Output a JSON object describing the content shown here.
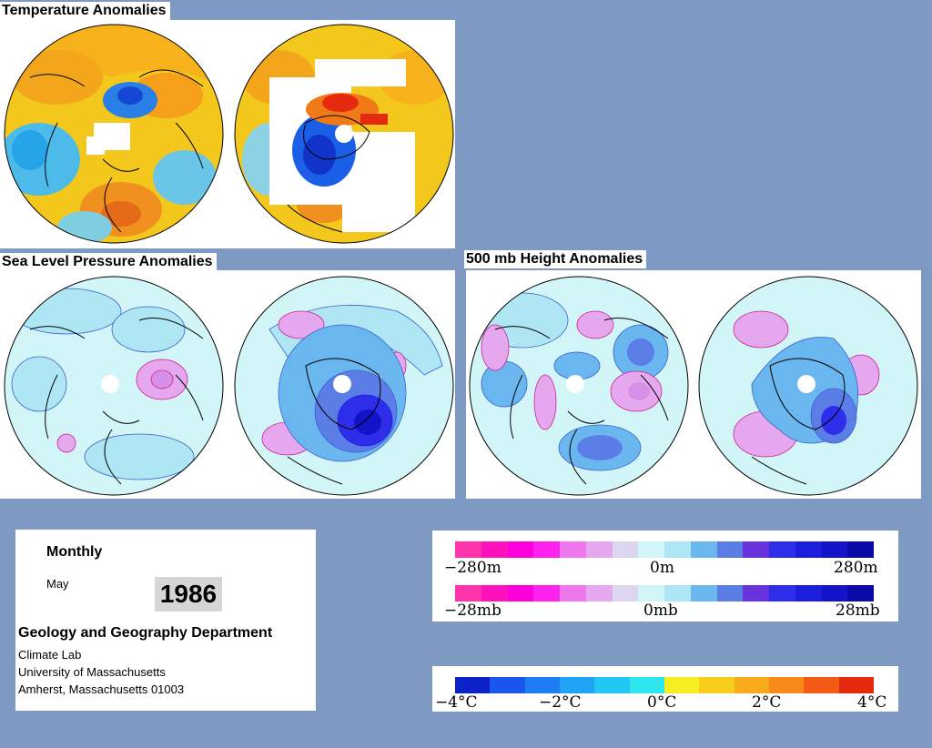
{
  "panels": {
    "temperature_title": "Temperature Anomalies",
    "slp_title": "Sea Level Pressure Anomalies",
    "height_title": "500 mb Height Anomalies"
  },
  "info": {
    "period": "Monthly",
    "month": "May",
    "year": "1986",
    "department": "Geology and Geography Department",
    "lab": "Climate Lab",
    "university": "University of Massachusetts",
    "address": "Amherst, Massachusetts 01003"
  },
  "legends": {
    "height": {
      "colors": [
        "#ff33aa",
        "#ff11bb",
        "#ff00dd",
        "#ff22ee",
        "#ee77ee",
        "#e5a8ee",
        "#dcd6f3",
        "#d2f6f8",
        "#aee6f4",
        "#6ab7f0",
        "#5a7ee6",
        "#6633dd",
        "#2d2dea",
        "#1d1ddd",
        "#1313c8",
        "#0a0aa8"
      ],
      "labels": [
        "−280m",
        "0m",
        "280m"
      ]
    },
    "slp": {
      "colors": [
        "#ff33aa",
        "#ff11bb",
        "#ff00dd",
        "#ff22ee",
        "#ee77ee",
        "#e5a8ee",
        "#dcd6f3",
        "#d2f6f8",
        "#aee6f4",
        "#6ab7f0",
        "#5a7ee6",
        "#6633dd",
        "#2d2dea",
        "#1d1ddd",
        "#1313c8",
        "#0a0aa8"
      ],
      "labels": [
        "−28mb",
        "0mb",
        "28mb"
      ]
    },
    "temperature": {
      "colors": [
        "#0b23c8",
        "#1a55ee",
        "#1f7df3",
        "#1ea3f5",
        "#22c6f4",
        "#2ee6ee",
        "#f7ee22",
        "#f7cf1a",
        "#f7aa1a",
        "#f78a18",
        "#f35a14",
        "#e62a10"
      ],
      "labels": [
        "−4°C",
        "−2°C",
        "0°C",
        "2°C",
        "4°C"
      ]
    }
  }
}
